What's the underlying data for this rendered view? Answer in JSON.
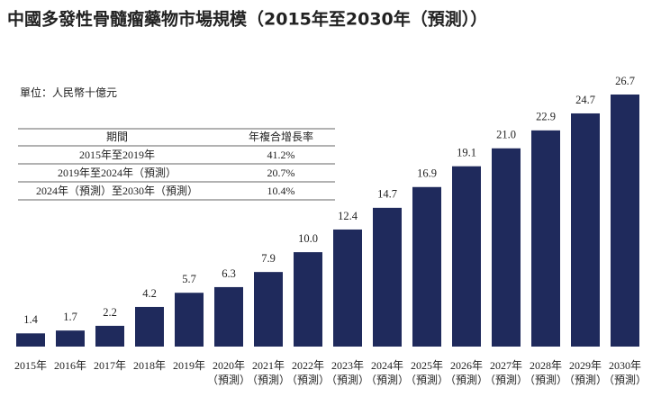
{
  "chart_data": {
    "type": "bar",
    "title": "中國多發性骨髓瘤藥物市場規模（2015年至2030年（預測））",
    "unit_label": "單位：人民幣十億元",
    "categories": [
      [
        "2015年"
      ],
      [
        "2016年"
      ],
      [
        "2017年"
      ],
      [
        "2018年"
      ],
      [
        "2019年"
      ],
      [
        "2020年",
        "（預測）"
      ],
      [
        "2021年",
        "（預測）"
      ],
      [
        "2022年",
        "（預測）"
      ],
      [
        "2023年",
        "（預測）"
      ],
      [
        "2024年",
        "（預測）"
      ],
      [
        "2025年",
        "（預測）"
      ],
      [
        "2026年",
        "（預測）"
      ],
      [
        "2027年",
        "（預測）"
      ],
      [
        "2028年",
        "（預測）"
      ],
      [
        "2029年",
        "（預測）"
      ],
      [
        "2030年",
        "（預測）"
      ]
    ],
    "values": [
      1.4,
      1.7,
      2.2,
      4.2,
      5.7,
      6.3,
      7.9,
      10.0,
      12.4,
      14.7,
      16.9,
      19.1,
      21.0,
      22.9,
      24.7,
      26.7
    ],
    "value_labels": [
      "1.4",
      "1.7",
      "2.2",
      "4.2",
      "5.7",
      "6.3",
      "7.9",
      "10.0",
      "12.4",
      "14.7",
      "16.9",
      "19.1",
      "21.0",
      "22.9",
      "24.7",
      "26.7"
    ],
    "color": "#1f2a5c",
    "cagr_table": {
      "header": [
        "期間",
        "年複合增長率"
      ],
      "rows": [
        [
          "2015年至2019年",
          "41.2%"
        ],
        [
          "2019年至2024年（預測）",
          "20.7%"
        ],
        [
          "2024年（預測）至2030年（預測）",
          "10.4%"
        ]
      ]
    }
  }
}
